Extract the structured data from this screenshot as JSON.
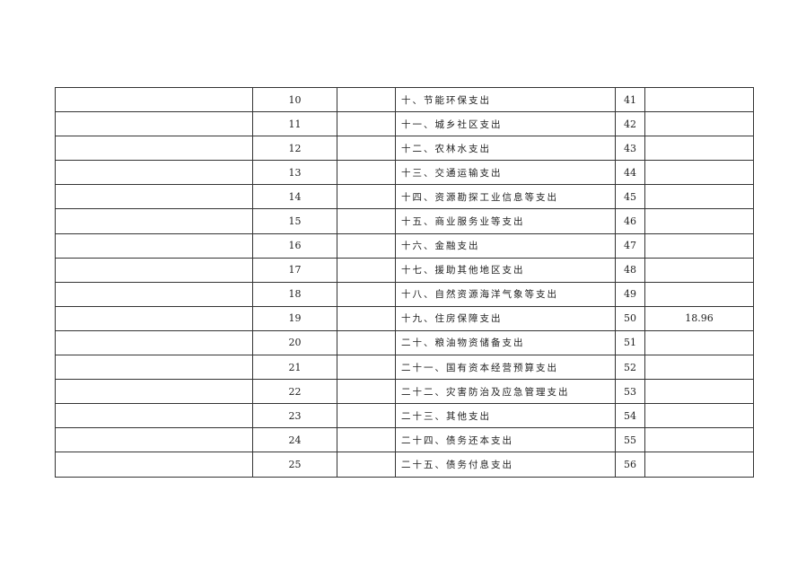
{
  "table": {
    "rows": [
      {
        "line_a": "10",
        "item": "十、节能环保支出",
        "line_b": "41",
        "amount": ""
      },
      {
        "line_a": "11",
        "item": "十一、城乡社区支出",
        "line_b": "42",
        "amount": ""
      },
      {
        "line_a": "12",
        "item": "十二、农林水支出",
        "line_b": "43",
        "amount": ""
      },
      {
        "line_a": "13",
        "item": "十三、交通运输支出",
        "line_b": "44",
        "amount": ""
      },
      {
        "line_a": "14",
        "item": "十四、资源勘探工业信息等支出",
        "line_b": "45",
        "amount": ""
      },
      {
        "line_a": "15",
        "item": "十五、商业服务业等支出",
        "line_b": "46",
        "amount": ""
      },
      {
        "line_a": "16",
        "item": "十六、金融支出",
        "line_b": "47",
        "amount": ""
      },
      {
        "line_a": "17",
        "item": "十七、援助其他地区支出",
        "line_b": "48",
        "amount": ""
      },
      {
        "line_a": "18",
        "item": "十八、自然资源海洋气象等支出",
        "line_b": "49",
        "amount": ""
      },
      {
        "line_a": "19",
        "item": "十九、住房保障支出",
        "line_b": "50",
        "amount": "18.96"
      },
      {
        "line_a": "20",
        "item": "二十、粮油物资储备支出",
        "line_b": "51",
        "amount": ""
      },
      {
        "line_a": "21",
        "item": "二十一、国有资本经营预算支出",
        "line_b": "52",
        "amount": ""
      },
      {
        "line_a": "22",
        "item": "二十二、灾害防治及应急管理支出",
        "line_b": "53",
        "amount": ""
      },
      {
        "line_a": "23",
        "item": "二十三、其他支出",
        "line_b": "54",
        "amount": ""
      },
      {
        "line_a": "24",
        "item": "二十四、债务还本支出",
        "line_b": "55",
        "amount": ""
      },
      {
        "line_a": "25",
        "item": "二十五、债务付息支出",
        "line_b": "56",
        "amount": ""
      }
    ]
  }
}
